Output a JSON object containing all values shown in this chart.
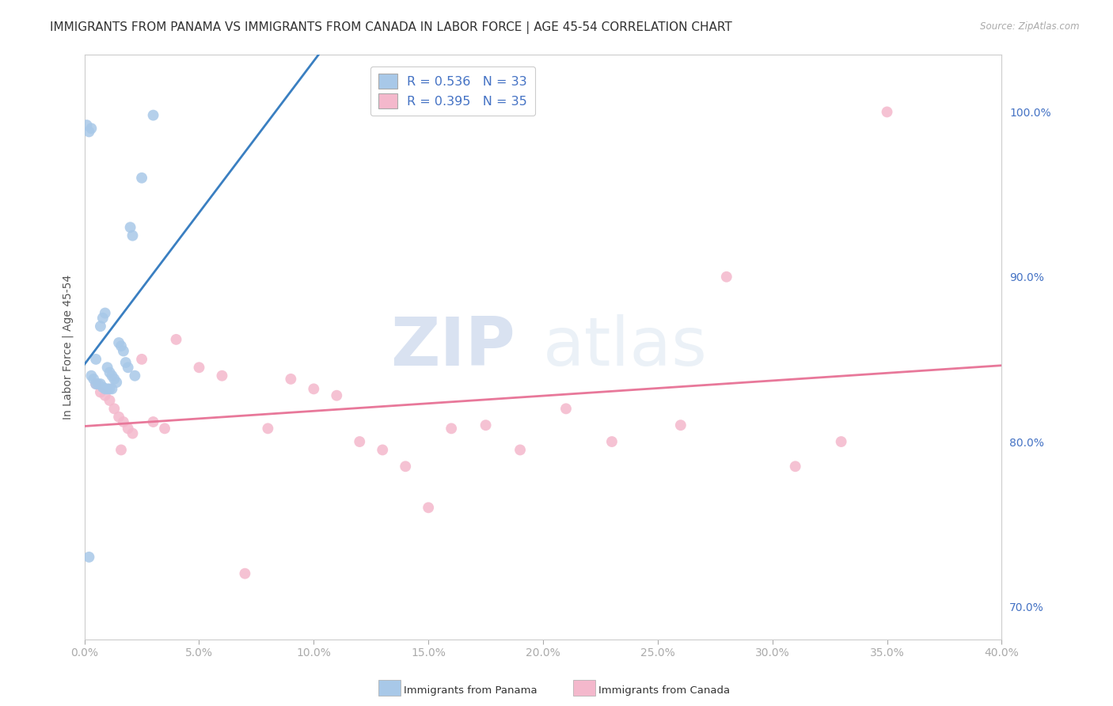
{
  "title": "IMMIGRANTS FROM PANAMA VS IMMIGRANTS FROM CANADA IN LABOR FORCE | AGE 45-54 CORRELATION CHART",
  "source": "Source: ZipAtlas.com",
  "ylabel": "In Labor Force | Age 45-54",
  "xlim": [
    0.0,
    0.4
  ],
  "ylim": [
    0.68,
    1.035
  ],
  "xtick_labels": [
    "0.0%",
    "5.0%",
    "10.0%",
    "15.0%",
    "20.0%",
    "25.0%",
    "30.0%",
    "35.0%",
    "40.0%"
  ],
  "xtick_vals": [
    0.0,
    0.05,
    0.1,
    0.15,
    0.2,
    0.25,
    0.3,
    0.35,
    0.4
  ],
  "ytick_labels_right": [
    "70.0%",
    "80.0%",
    "90.0%",
    "100.0%"
  ],
  "ytick_vals_right": [
    0.7,
    0.8,
    0.9,
    1.0
  ],
  "panama_color": "#a8c8e8",
  "canada_color": "#f4b8cc",
  "panama_R": 0.536,
  "panama_N": 33,
  "canada_R": 0.395,
  "canada_N": 35,
  "watermark_zip": "ZIP",
  "watermark_atlas": "atlas",
  "background_color": "#ffffff",
  "grid_color": "#dddddd",
  "panama_scatter_x": [
    0.002,
    0.005,
    0.007,
    0.008,
    0.009,
    0.01,
    0.011,
    0.012,
    0.013,
    0.014,
    0.015,
    0.016,
    0.017,
    0.018,
    0.019,
    0.02,
    0.021,
    0.022,
    0.003,
    0.004,
    0.005,
    0.006,
    0.007,
    0.008,
    0.009,
    0.01,
    0.011,
    0.012,
    0.001,
    0.003,
    0.002,
    0.025,
    0.03
  ],
  "panama_scatter_y": [
    0.73,
    0.85,
    0.87,
    0.875,
    0.878,
    0.845,
    0.842,
    0.84,
    0.838,
    0.836,
    0.86,
    0.858,
    0.855,
    0.848,
    0.845,
    0.93,
    0.925,
    0.84,
    0.84,
    0.838,
    0.835,
    0.835,
    0.835,
    0.833,
    0.832,
    0.832,
    0.832,
    0.832,
    0.992,
    0.99,
    0.988,
    0.96,
    0.998
  ],
  "canada_scatter_x": [
    0.005,
    0.007,
    0.009,
    0.011,
    0.013,
    0.015,
    0.017,
    0.019,
    0.021,
    0.025,
    0.03,
    0.035,
    0.04,
    0.05,
    0.06,
    0.07,
    0.08,
    0.09,
    0.1,
    0.11,
    0.12,
    0.13,
    0.14,
    0.15,
    0.16,
    0.175,
    0.19,
    0.21,
    0.23,
    0.26,
    0.28,
    0.31,
    0.33,
    0.016,
    0.35
  ],
  "canada_scatter_y": [
    0.835,
    0.83,
    0.828,
    0.825,
    0.82,
    0.815,
    0.812,
    0.808,
    0.805,
    0.85,
    0.812,
    0.808,
    0.862,
    0.845,
    0.84,
    0.72,
    0.808,
    0.838,
    0.832,
    0.828,
    0.8,
    0.795,
    0.785,
    0.76,
    0.808,
    0.81,
    0.795,
    0.82,
    0.8,
    0.81,
    0.9,
    0.785,
    0.8,
    0.795,
    1.0
  ],
  "title_fontsize": 11,
  "axis_label_fontsize": 10,
  "tick_fontsize": 10
}
